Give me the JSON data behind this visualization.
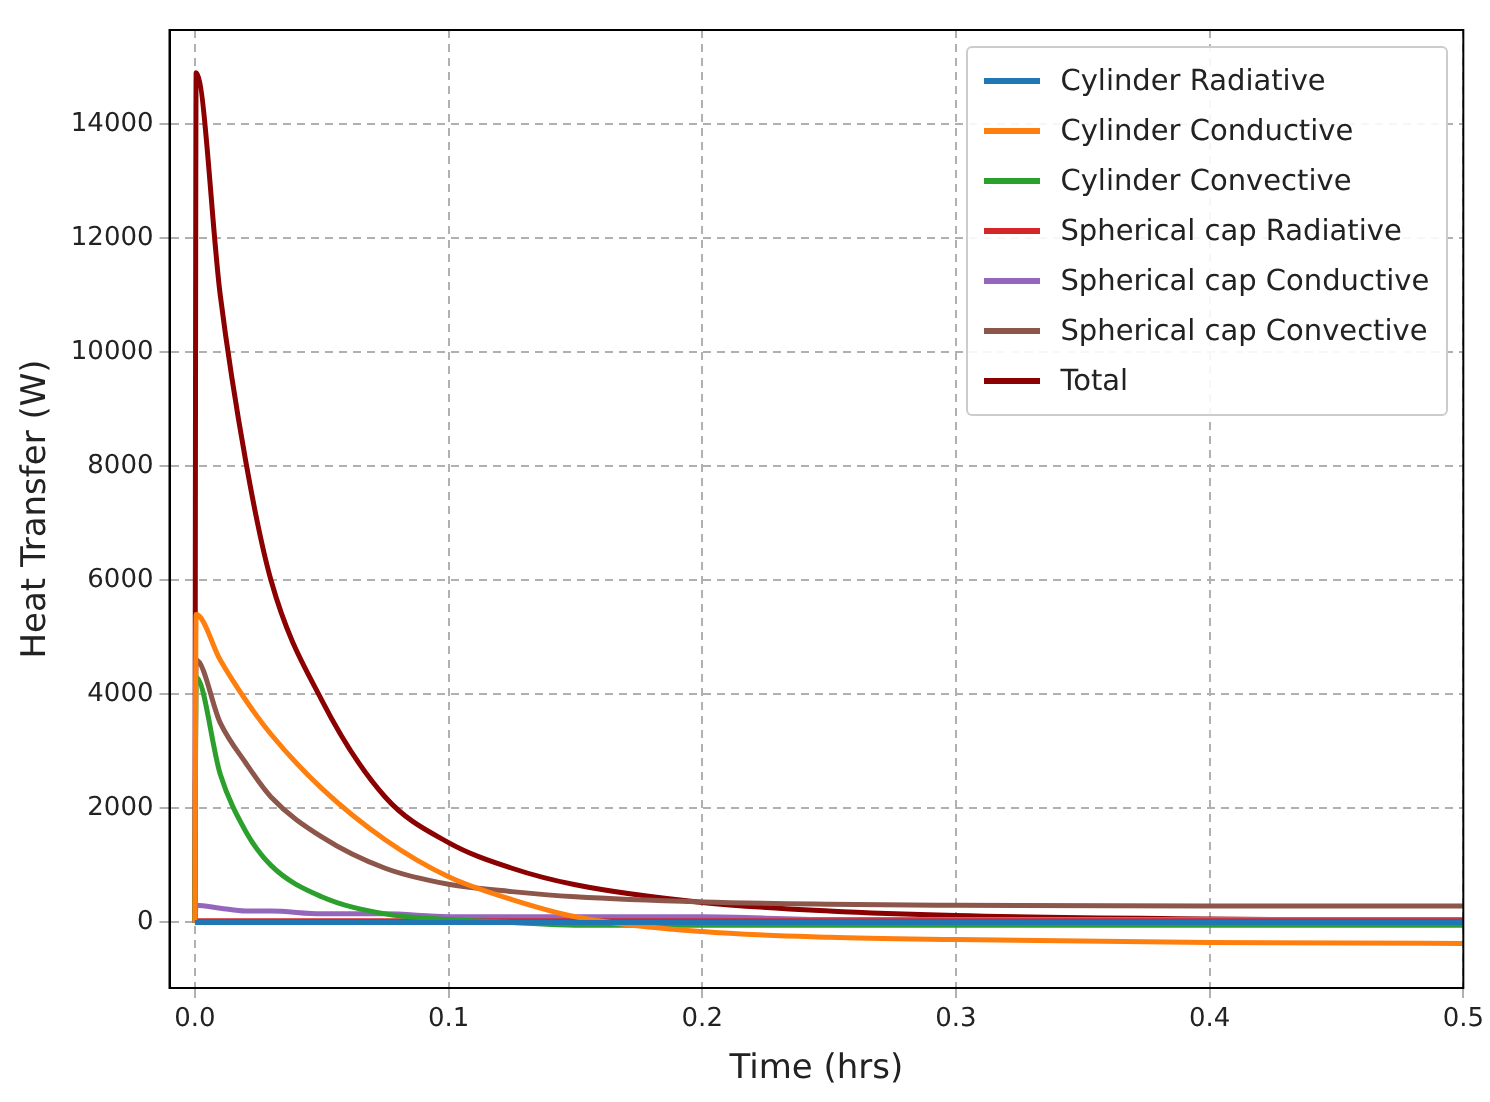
{
  "chart_data": {
    "type": "line",
    "xlabel": "Time (hrs)",
    "ylabel": "Heat Transfer (W)",
    "x": [
      0,
      0.0005,
      0.01,
      0.02,
      0.03,
      0.05,
      0.075,
      0.1,
      0.125,
      0.15,
      0.2,
      0.25,
      0.3,
      0.4,
      0.5
    ],
    "xlim": [
      -0.01,
      0.5
    ],
    "xticks": [
      {
        "value": 0,
        "label": "0.0"
      },
      {
        "value": 0.1,
        "label": "0.1"
      },
      {
        "value": 0.2,
        "label": "0.2"
      },
      {
        "value": 0.3,
        "label": "0.3"
      },
      {
        "value": 0.4,
        "label": "0.4"
      },
      {
        "value": 0.5,
        "label": "0.5"
      }
    ],
    "ylim": [
      -1150,
      15650
    ],
    "yticks": [
      0,
      2000,
      4000,
      6000,
      8000,
      10000,
      12000,
      14000
    ],
    "grid": true,
    "legend": "top right",
    "line_style": "solid",
    "marker": "none",
    "series": [
      {
        "name": "Cylinder Radiative",
        "color": "#1f77b4",
        "values": [
          0,
          0,
          0,
          0,
          0,
          0,
          0,
          0,
          0,
          0,
          0,
          0,
          0,
          0,
          0
        ]
      },
      {
        "name": "Cylinder Conductive",
        "color": "#ff7f0e",
        "values": [
          0,
          5400,
          4600,
          3900,
          3300,
          2350,
          1450,
          800,
          400,
          100,
          -160,
          -260,
          -300,
          -350,
          -370
        ]
      },
      {
        "name": "Cylinder Convective",
        "color": "#2ca02c",
        "values": [
          0,
          4300,
          2600,
          1600,
          1000,
          450,
          150,
          50,
          0,
          -50,
          -50,
          -50,
          -50,
          -50,
          -50
        ]
      },
      {
        "name": "Spherical cap Radiative",
        "color": "#d62728",
        "values": [
          0,
          30,
          30,
          30,
          30,
          30,
          30,
          30,
          30,
          30,
          30,
          30,
          30,
          30,
          30
        ]
      },
      {
        "name": "Spherical cap Conductive",
        "color": "#9467bd",
        "values": [
          0,
          300,
          250,
          200,
          200,
          150,
          150,
          100,
          100,
          100,
          100,
          50,
          50,
          50,
          50
        ]
      },
      {
        "name": "Spherical cap Convective",
        "color": "#8c564b",
        "values": [
          0,
          4600,
          3500,
          2800,
          2200,
          1500,
          950,
          670,
          540,
          450,
          360,
          320,
          300,
          290,
          290
        ]
      },
      {
        "name": "Total",
        "color": "#8b0000",
        "values": [
          0,
          14900,
          11000,
          8100,
          6000,
          3900,
          2200,
          1400,
          950,
          660,
          350,
          200,
          120,
          60,
          30
        ]
      }
    ]
  }
}
